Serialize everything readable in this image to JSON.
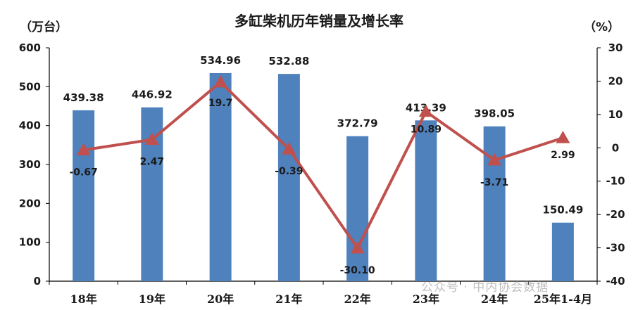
{
  "chart_data": {
    "type": "bar+line",
    "title": "多缸柴机历年销量及增长率",
    "left_unit": "（万台）",
    "right_unit": "（%）",
    "categories": [
      "18年",
      "19年",
      "20年",
      "21年",
      "22年",
      "23年",
      "24年",
      "25年1-4月"
    ],
    "series": [
      {
        "type": "bar",
        "axis": "left",
        "values": [
          439.38,
          446.92,
          534.96,
          532.88,
          372.79,
          413.39,
          398.05,
          150.49
        ],
        "labels": [
          "439.38",
          "446.92",
          "534.96",
          "532.88",
          "372.79",
          "413.39",
          "398.05",
          "150.49"
        ],
        "color": "#4f81bd"
      },
      {
        "type": "line",
        "axis": "right",
        "values": [
          -0.67,
          2.47,
          19.7,
          -0.39,
          -30.1,
          10.89,
          -3.71,
          2.99
        ],
        "labels": [
          "-0.67",
          "2.47",
          "19.7",
          "-0.39",
          "-30.10",
          "10.89",
          "-3.71",
          "2.99"
        ],
        "color": "#c0504d"
      }
    ],
    "left_axis": {
      "min": 0,
      "max": 600,
      "step": 100,
      "ticks": [
        "0",
        "100",
        "200",
        "300",
        "400",
        "500",
        "600"
      ]
    },
    "right_axis": {
      "min": -40,
      "max": 30,
      "step": 10,
      "ticks": [
        "-40",
        "-30",
        "-20",
        "-10",
        "0",
        "10",
        "20",
        "30"
      ]
    },
    "grid": false,
    "legend": "none"
  },
  "watermark": "公众号 · 中内协会数据"
}
